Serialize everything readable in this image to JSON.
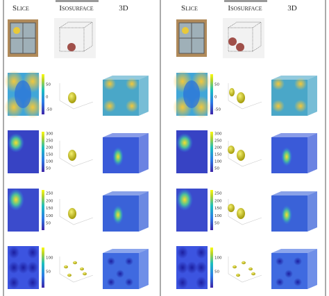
{
  "panels": [
    {
      "headers": [
        "Slice",
        "Isosurface",
        "3D"
      ],
      "rows": [
        {
          "ticks": [
            50,
            0,
            -50
          ]
        },
        {
          "ticks": [
            300,
            250,
            200,
            150,
            100,
            50
          ]
        },
        {
          "ticks": [
            250,
            200,
            150,
            100,
            50
          ]
        },
        {
          "ticks": [
            100,
            50
          ]
        }
      ]
    },
    {
      "headers": [
        "Slice",
        "Isosurface",
        "3D"
      ],
      "rows": [
        {
          "ticks": [
            50,
            0,
            -50
          ]
        },
        {
          "ticks": [
            300,
            250,
            200,
            150,
            100,
            50
          ]
        },
        {
          "ticks": [
            250,
            200,
            150,
            100,
            50
          ]
        },
        {
          "ticks": [
            100,
            50
          ]
        }
      ]
    }
  ]
}
